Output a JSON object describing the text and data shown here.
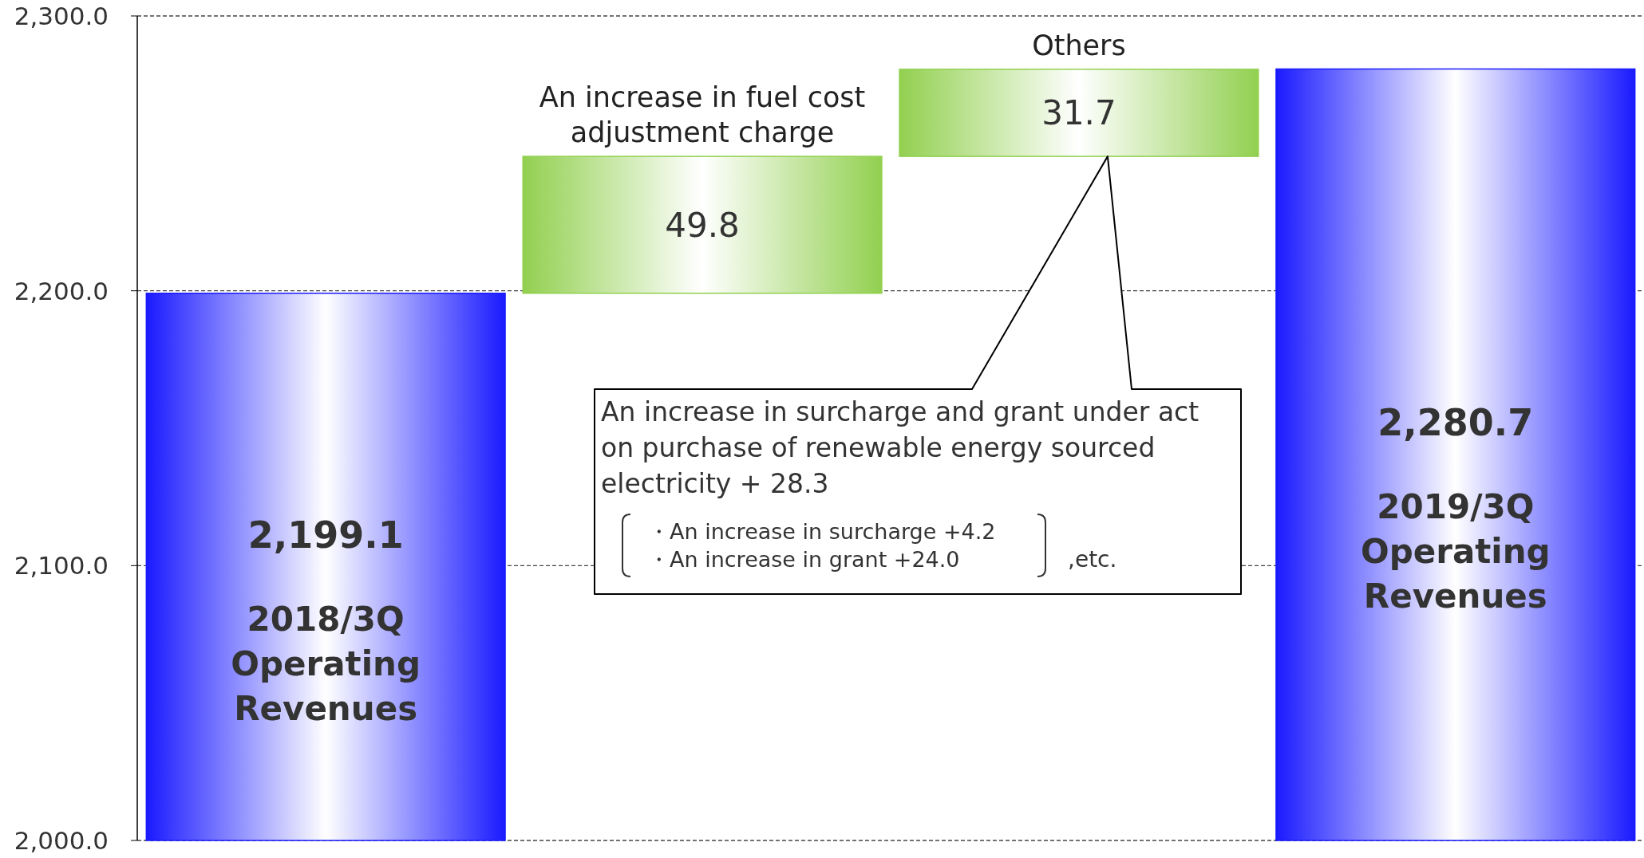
{
  "chart_data": {
    "type": "bar",
    "categories": [
      "2018/3Q Operating Revenues",
      "An increase in fuel cost adjustment charge",
      "Others",
      "2019/3Q Operating Revenues"
    ],
    "values": [
      2199.1,
      49.8,
      31.7,
      2280.7
    ],
    "base": [
      null,
      2199.1,
      2248.9,
      null
    ],
    "colors": [
      "#1a1aff",
      "#92d050",
      "#92d050",
      "#1a1aff"
    ],
    "value_labels": [
      "2,199.1",
      "49.8",
      "31.7",
      "2,280.7"
    ],
    "ylim": [
      2000,
      2300
    ],
    "yticks": [
      {
        "value": 2000,
        "label": "2,000.0"
      },
      {
        "value": 2100,
        "label": "2,100.0"
      },
      {
        "value": 2200,
        "label": "2,200.0"
      },
      {
        "value": 2300,
        "label": "2,300.0"
      }
    ],
    "grid": "y",
    "annotations": [
      "An increase in surcharge and grant under act on purchase of renewable energy sourced electricity + 28.3",
      "・An increase in surcharge +4.2",
      "・An increase in grant +24.0",
      ",etc."
    ]
  }
}
